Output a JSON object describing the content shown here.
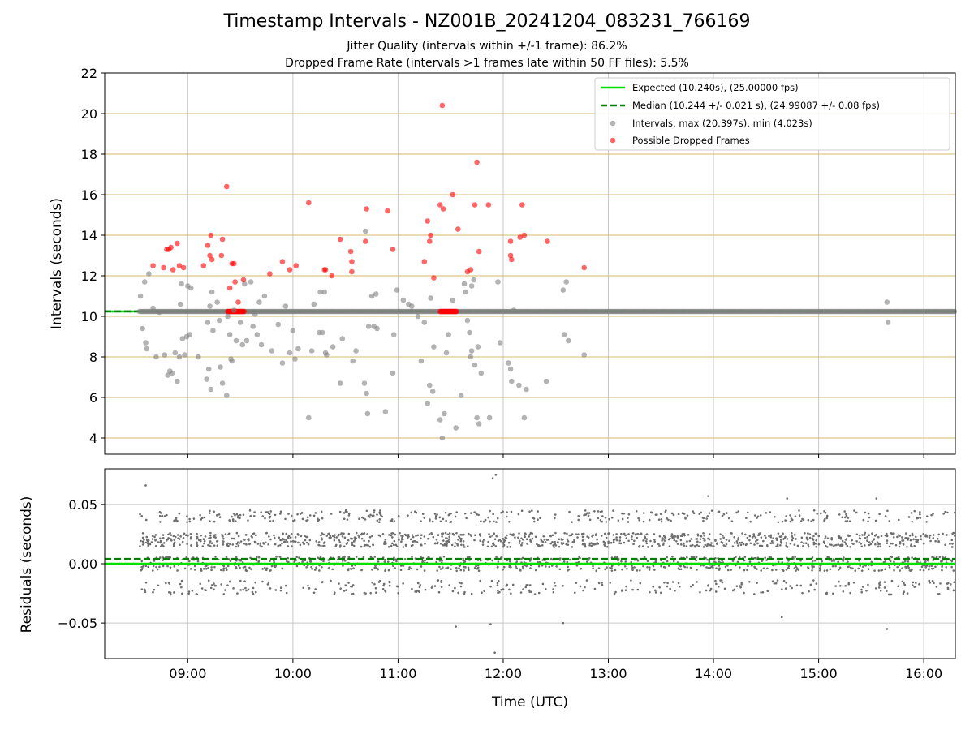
{
  "title": "Timestamp Intervals - NZ001B_20241204_083231_766169",
  "subtitle_jitter": "Jitter Quality (intervals within +/-1 frame): 86.2%",
  "subtitle_dropped": "Dropped Frame Rate (intervals >1 frames late within 50 FF files): 5.5%",
  "colors": {
    "expected": "#00e000",
    "median": "#007f00",
    "intervals": "#808080",
    "dropped": "#ff0000",
    "hgrid": "#d4b86a",
    "vgrid": "#c8c8c8",
    "residuals": "#6e6e6e"
  },
  "chart_data": [
    {
      "type": "scatter",
      "xlabel": "",
      "ylabel": "Intervals (seconds)",
      "xlim": [
        8.21,
        16.3
      ],
      "ylim": [
        3.2,
        22
      ],
      "yticks": [
        4,
        6,
        8,
        10,
        12,
        14,
        16,
        18,
        20,
        22
      ],
      "xticks": [
        9,
        10,
        11,
        12,
        13,
        14,
        15,
        16
      ],
      "legend_position": "top-right",
      "grid": "horizontal and vertical",
      "expected": 10.24,
      "median": 10.244,
      "legend": [
        "Expected (10.240s), (25.00000 fps)",
        "Median (10.244 +/- 0.021 s), (24.99087 +/- 0.08 fps)",
        "Intervals, max (20.397s), min (4.023s)",
        "Possible Dropped Frames"
      ],
      "series": [
        {
          "name": "Intervals, max (20.397s), min (4.023s)",
          "points": [
            [
              8.55,
              11.0
            ],
            [
              8.57,
              9.4
            ],
            [
              8.59,
              11.7
            ],
            [
              8.6,
              8.7
            ],
            [
              8.61,
              8.4
            ],
            [
              8.63,
              12.1
            ],
            [
              8.67,
              10.4
            ],
            [
              8.7,
              8.0
            ],
            [
              8.73,
              10.2
            ],
            [
              8.78,
              8.1
            ],
            [
              8.81,
              7.1
            ],
            [
              8.83,
              7.3
            ],
            [
              8.85,
              7.2
            ],
            [
              8.88,
              8.2
            ],
            [
              8.9,
              6.8
            ],
            [
              8.92,
              8.0
            ],
            [
              8.93,
              10.6
            ],
            [
              8.94,
              11.6
            ],
            [
              8.95,
              8.9
            ],
            [
              8.97,
              8.1
            ],
            [
              8.99,
              9.0
            ],
            [
              9.0,
              11.5
            ],
            [
              9.02,
              9.1
            ],
            [
              9.03,
              11.4
            ],
            [
              9.1,
              8.0
            ],
            [
              9.18,
              6.9
            ],
            [
              9.19,
              9.7
            ],
            [
              9.2,
              7.4
            ],
            [
              9.21,
              10.5
            ],
            [
              9.22,
              6.4
            ],
            [
              9.23,
              11.2
            ],
            [
              9.24,
              9.3
            ],
            [
              9.28,
              10.7
            ],
            [
              9.3,
              9.8
            ],
            [
              9.31,
              7.5
            ],
            [
              9.33,
              6.7
            ],
            [
              9.37,
              6.1
            ],
            [
              9.38,
              10.0
            ],
            [
              9.4,
              9.1
            ],
            [
              9.41,
              7.9
            ],
            [
              9.42,
              7.8
            ],
            [
              9.44,
              10.3
            ],
            [
              9.46,
              8.8
            ],
            [
              9.5,
              9.7
            ],
            [
              9.52,
              8.6
            ],
            [
              9.54,
              11.6
            ],
            [
              9.56,
              8.8
            ],
            [
              9.6,
              11.7
            ],
            [
              9.62,
              9.5
            ],
            [
              9.64,
              10.1
            ],
            [
              9.66,
              9.1
            ],
            [
              9.68,
              10.7
            ],
            [
              9.7,
              8.6
            ],
            [
              9.73,
              11.0
            ],
            [
              9.8,
              8.3
            ],
            [
              9.86,
              9.6
            ],
            [
              9.9,
              7.7
            ],
            [
              9.93,
              10.5
            ],
            [
              9.97,
              8.2
            ],
            [
              10.0,
              9.3
            ],
            [
              10.02,
              7.9
            ],
            [
              10.05,
              8.4
            ],
            [
              10.15,
              5.0
            ],
            [
              10.18,
              8.3
            ],
            [
              10.2,
              10.6
            ],
            [
              10.25,
              9.2
            ],
            [
              10.26,
              11.2
            ],
            [
              10.28,
              9.2
            ],
            [
              10.3,
              11.2
            ],
            [
              10.31,
              8.2
            ],
            [
              10.32,
              8.1
            ],
            [
              10.38,
              8.5
            ],
            [
              10.45,
              6.7
            ],
            [
              10.47,
              8.9
            ],
            [
              10.57,
              7.8
            ],
            [
              10.6,
              8.3
            ],
            [
              10.68,
              6.7
            ],
            [
              10.69,
              14.2
            ],
            [
              10.7,
              6.2
            ],
            [
              10.71,
              5.2
            ],
            [
              10.72,
              9.5
            ],
            [
              10.75,
              11.0
            ],
            [
              10.77,
              9.5
            ],
            [
              10.79,
              11.1
            ],
            [
              10.8,
              9.4
            ],
            [
              10.88,
              5.3
            ],
            [
              10.95,
              7.2
            ],
            [
              10.96,
              9.1
            ],
            [
              10.99,
              11.3
            ],
            [
              11.05,
              10.8
            ],
            [
              11.1,
              10.6
            ],
            [
              11.13,
              10.5
            ],
            [
              11.19,
              10.0
            ],
            [
              11.22,
              7.8
            ],
            [
              11.25,
              9.7
            ],
            [
              11.28,
              5.7
            ],
            [
              11.3,
              6.6
            ],
            [
              11.31,
              10.9
            ],
            [
              11.33,
              6.3
            ],
            [
              11.34,
              8.5
            ],
            [
              11.4,
              4.9
            ],
            [
              11.42,
              4.0
            ],
            [
              11.44,
              5.2
            ],
            [
              11.46,
              8.2
            ],
            [
              11.48,
              9.1
            ],
            [
              11.52,
              10.8
            ],
            [
              11.55,
              4.5
            ],
            [
              11.6,
              6.1
            ],
            [
              11.63,
              11.6
            ],
            [
              11.64,
              11.2
            ],
            [
              11.66,
              9.8
            ],
            [
              11.68,
              9.2
            ],
            [
              11.69,
              8.0
            ],
            [
              11.7,
              8.3
            ],
            [
              11.7,
              11.5
            ],
            [
              11.72,
              11.8
            ],
            [
              11.73,
              7.6
            ],
            [
              11.75,
              5.0
            ],
            [
              11.76,
              8.5
            ],
            [
              11.77,
              4.7
            ],
            [
              11.79,
              7.2
            ],
            [
              11.87,
              5.0
            ],
            [
              11.95,
              11.7
            ],
            [
              11.97,
              8.7
            ],
            [
              12.05,
              7.7
            ],
            [
              12.07,
              7.4
            ],
            [
              12.08,
              6.8
            ],
            [
              12.1,
              10.3
            ],
            [
              12.15,
              6.6
            ],
            [
              12.2,
              5.0
            ],
            [
              12.22,
              6.4
            ],
            [
              12.41,
              6.8
            ],
            [
              12.57,
              11.3
            ],
            [
              12.58,
              9.1
            ],
            [
              12.6,
              11.7
            ],
            [
              12.62,
              8.8
            ],
            [
              12.77,
              8.1
            ],
            [
              15.65,
              10.7
            ],
            [
              15.66,
              9.7
            ]
          ]
        },
        {
          "name": "Possible Dropped Frames",
          "points": [
            [
              8.67,
              12.5
            ],
            [
              8.77,
              12.4
            ],
            [
              8.8,
              13.3
            ],
            [
              8.82,
              13.3
            ],
            [
              8.84,
              13.4
            ],
            [
              8.86,
              12.3
            ],
            [
              8.9,
              13.6
            ],
            [
              8.92,
              12.5
            ],
            [
              8.96,
              12.4
            ],
            [
              9.15,
              12.5
            ],
            [
              9.19,
              13.5
            ],
            [
              9.21,
              13.0
            ],
            [
              9.22,
              14.0
            ],
            [
              9.23,
              12.8
            ],
            [
              9.32,
              13.0
            ],
            [
              9.33,
              13.8
            ],
            [
              9.37,
              16.4
            ],
            [
              9.4,
              11.4
            ],
            [
              9.42,
              12.6
            ],
            [
              9.44,
              12.6
            ],
            [
              9.45,
              11.7
            ],
            [
              9.48,
              10.7
            ],
            [
              9.53,
              11.8
            ],
            [
              9.78,
              12.1
            ],
            [
              9.9,
              12.7
            ],
            [
              9.97,
              12.3
            ],
            [
              10.03,
              12.5
            ],
            [
              10.15,
              15.6
            ],
            [
              10.3,
              12.3
            ],
            [
              10.31,
              12.3
            ],
            [
              10.37,
              12.0
            ],
            [
              10.45,
              13.8
            ],
            [
              10.55,
              13.2
            ],
            [
              10.56,
              12.2
            ],
            [
              10.56,
              12.7
            ],
            [
              10.69,
              13.7
            ],
            [
              10.7,
              15.3
            ],
            [
              10.9,
              15.2
            ],
            [
              10.95,
              13.3
            ],
            [
              11.25,
              12.7
            ],
            [
              11.28,
              14.7
            ],
            [
              11.3,
              13.7
            ],
            [
              11.31,
              14.0
            ],
            [
              11.34,
              11.9
            ],
            [
              11.4,
              15.5
            ],
            [
              11.42,
              20.4
            ],
            [
              11.43,
              15.3
            ],
            [
              11.52,
              16.0
            ],
            [
              11.57,
              14.3
            ],
            [
              11.66,
              12.2
            ],
            [
              11.69,
              12.3
            ],
            [
              11.73,
              15.5
            ],
            [
              11.75,
              17.6
            ],
            [
              11.77,
              13.2
            ],
            [
              11.86,
              15.5
            ],
            [
              12.07,
              13.7
            ],
            [
              12.08,
              12.8
            ],
            [
              12.07,
              13.0
            ],
            [
              12.16,
              13.9
            ],
            [
              12.18,
              15.5
            ],
            [
              12.2,
              14.0
            ],
            [
              12.42,
              13.7
            ],
            [
              12.77,
              12.4
            ]
          ]
        }
      ]
    },
    {
      "type": "scatter",
      "xlabel": "Time (UTC)",
      "ylabel": "Residuals (seconds)",
      "xlim": [
        8.21,
        16.3
      ],
      "ylim": [
        -0.08,
        0.08
      ],
      "yticks": [
        0.05,
        0.0,
        -0.05
      ],
      "ytick_labels": [
        "0.05",
        "0.00",
        "−0.05"
      ],
      "xticks": [
        9,
        10,
        11,
        12,
        13,
        14,
        15,
        16
      ],
      "xtick_labels": [
        "09:00",
        "10:00",
        "11:00",
        "12:00",
        "13:00",
        "14:00",
        "15:00",
        "16:00"
      ],
      "expected_residual": 0.0,
      "median_residual": 0.004,
      "x_range": [
        8.54,
        16.3
      ],
      "outliers": [
        [
          8.6,
          0.066
        ],
        [
          11.9,
          0.072
        ],
        [
          11.93,
          0.075
        ],
        [
          11.92,
          -0.075
        ],
        [
          11.55,
          -0.053
        ],
        [
          11.88,
          -0.051
        ],
        [
          12.57,
          -0.05
        ],
        [
          15.65,
          -0.055
        ],
        [
          14.65,
          -0.045
        ],
        [
          13.95,
          0.057
        ],
        [
          15.55,
          0.055
        ],
        [
          14.7,
          0.055
        ]
      ]
    }
  ]
}
